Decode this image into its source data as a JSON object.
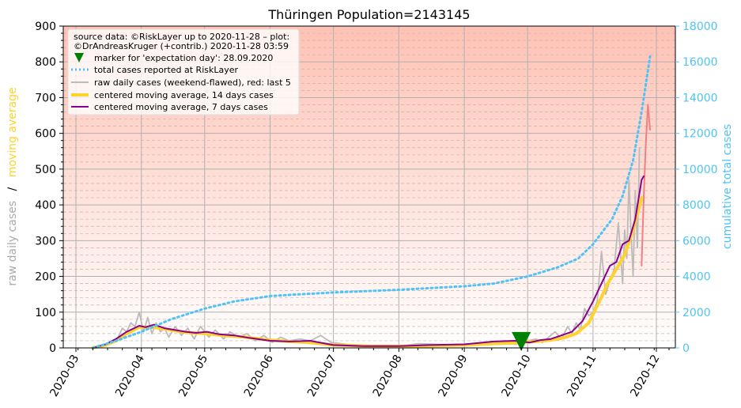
{
  "chart_data": {
    "type": "line",
    "title": "Thüringen Population=2143145",
    "ylabel_left": {
      "part1": "raw daily cases",
      "sep": "/",
      "part2": "moving average"
    },
    "ylabel_right": "cumulative total cases",
    "ylim_left": [
      0,
      900
    ],
    "ylim_right": [
      0,
      18000
    ],
    "yticks_left": [
      "0",
      "100",
      "200",
      "300",
      "400",
      "500",
      "600",
      "700",
      "800",
      "900"
    ],
    "yticks_right": [
      "0",
      "2000",
      "4000",
      "6000",
      "8000",
      "10000",
      "12000",
      "14000",
      "16000",
      "18000"
    ],
    "xticks": [
      "2020-03",
      "2020-04",
      "2020-05",
      "2020-06",
      "2020-07",
      "2020-08",
      "2020-09",
      "2020-10",
      "2020-11",
      "2020-12"
    ],
    "xlim": [
      "2020-02-24",
      "2020-12-10"
    ],
    "grid": true,
    "background": "vertical gradient, white at 0 to salmon at 900 (left axis)",
    "legend": {
      "placement": "top-left",
      "source_line1": "source data: ©RiskLayer up to 2020-11-28 – plot:",
      "source_line2": "©DrAndreasKruger (+contrib.) 2020-11-28 03:59",
      "entries": [
        {
          "label": "marker for 'expectation day': 28.09.2020",
          "style": "marker",
          "color": "#008000"
        },
        {
          "label": "total cases reported at RiskLayer",
          "style": "dotted",
          "color": "#4fc3f7"
        },
        {
          "label": "raw daily cases (weekend-flawed), red: last 5",
          "style": "solid-thin",
          "color": "#bbbbbb"
        },
        {
          "label": "centered moving average, 14 days cases",
          "style": "solid-thick",
          "color": "#ffd22e"
        },
        {
          "label": "centered moving average, 7 days cases",
          "style": "solid",
          "color": "#8b008b"
        }
      ]
    },
    "marker": {
      "date": "2020-09-28",
      "y": 18,
      "color": "#008000"
    },
    "colors": {
      "raw": "#bbbbbb",
      "raw_last5": "#f08080",
      "ma14": "#ffd22e",
      "ma7": "#8b008b",
      "total": "#4fc3f7",
      "right_axis": "#4fc3f7",
      "ylabel_part1": "#aaaaaa",
      "ylabel_part2": "#ffd22e"
    },
    "series": {
      "total_cases": {
        "dates": [
          "2020-03-09",
          "2020-03-20",
          "2020-04-01",
          "2020-04-15",
          "2020-05-01",
          "2020-05-15",
          "2020-06-01",
          "2020-06-15",
          "2020-07-01",
          "2020-08-01",
          "2020-09-01",
          "2020-09-15",
          "2020-10-01",
          "2020-10-15",
          "2020-10-25",
          "2020-11-01",
          "2020-11-10",
          "2020-11-15",
          "2020-11-20",
          "2020-11-24",
          "2020-11-28"
        ],
        "values": [
          0,
          400,
          900,
          1600,
          2200,
          2600,
          2900,
          3000,
          3100,
          3250,
          3450,
          3600,
          4000,
          4500,
          5000,
          5800,
          7200,
          8500,
          10500,
          13200,
          16300
        ]
      },
      "raw_daily": {
        "dates": [
          "2020-03-09",
          "2020-03-13",
          "2020-03-16",
          "2020-03-19",
          "2020-03-21",
          "2020-03-23",
          "2020-03-25",
          "2020-03-27",
          "2020-03-29",
          "2020-03-31",
          "2020-04-02",
          "2020-04-04",
          "2020-04-06",
          "2020-04-08",
          "2020-04-10",
          "2020-04-12",
          "2020-04-14",
          "2020-04-17",
          "2020-04-20",
          "2020-04-23",
          "2020-04-26",
          "2020-04-29",
          "2020-05-03",
          "2020-05-06",
          "2020-05-10",
          "2020-05-13",
          "2020-05-17",
          "2020-05-21",
          "2020-05-25",
          "2020-05-29",
          "2020-06-02",
          "2020-06-06",
          "2020-06-10",
          "2020-06-15",
          "2020-06-20",
          "2020-06-25",
          "2020-06-30",
          "2020-07-10",
          "2020-07-20",
          "2020-08-01",
          "2020-08-10",
          "2020-08-20",
          "2020-09-01",
          "2020-09-10",
          "2020-09-20",
          "2020-09-25",
          "2020-10-01",
          "2020-10-05",
          "2020-10-08",
          "2020-10-11",
          "2020-10-14",
          "2020-10-17",
          "2020-10-20",
          "2020-10-22",
          "2020-10-24",
          "2020-10-26",
          "2020-10-28",
          "2020-10-30",
          "2020-11-01",
          "2020-11-03",
          "2020-11-05",
          "2020-11-07",
          "2020-11-09",
          "2020-11-11",
          "2020-11-13",
          "2020-11-15",
          "2020-11-16",
          "2020-11-17",
          "2020-11-18",
          "2020-11-19",
          "2020-11-20",
          "2020-11-21",
          "2020-11-22",
          "2020-11-23"
        ],
        "values": [
          0,
          5,
          10,
          20,
          30,
          55,
          45,
          70,
          60,
          100,
          45,
          85,
          40,
          70,
          45,
          55,
          30,
          60,
          35,
          55,
          25,
          60,
          30,
          50,
          25,
          45,
          30,
          40,
          20,
          35,
          15,
          30,
          20,
          25,
          20,
          35,
          15,
          8,
          5,
          5,
          12,
          10,
          8,
          10,
          20,
          10,
          20,
          25,
          15,
          30,
          45,
          25,
          60,
          40,
          70,
          50,
          110,
          90,
          100,
          130,
          270,
          150,
          190,
          220,
          350,
          180,
          330,
          250,
          470,
          320,
          200,
          440,
          280,
          560
        ]
      },
      "raw_last5": {
        "dates": [
          "2020-11-24",
          "2020-11-25",
          "2020-11-26",
          "2020-11-27",
          "2020-11-28"
        ],
        "values": [
          230,
          420,
          570,
          680,
          610
        ]
      },
      "ma14": {
        "dates": [
          "2020-03-09",
          "2020-03-15",
          "2020-03-20",
          "2020-03-25",
          "2020-03-31",
          "2020-04-05",
          "2020-04-10",
          "2020-04-15",
          "2020-04-20",
          "2020-04-25",
          "2020-05-01",
          "2020-05-10",
          "2020-05-20",
          "2020-06-01",
          "2020-06-10",
          "2020-06-20",
          "2020-07-01",
          "2020-07-20",
          "2020-08-10",
          "2020-09-01",
          "2020-09-15",
          "2020-09-25",
          "2020-10-05",
          "2020-10-12",
          "2020-10-18",
          "2020-10-24",
          "2020-10-30",
          "2020-11-04",
          "2020-11-08",
          "2020-11-12",
          "2020-11-16",
          "2020-11-20",
          "2020-11-24"
        ],
        "values": [
          0,
          8,
          20,
          40,
          58,
          58,
          55,
          50,
          45,
          42,
          40,
          35,
          30,
          22,
          18,
          15,
          8,
          5,
          5,
          8,
          12,
          14,
          18,
          22,
          28,
          40,
          70,
          130,
          180,
          220,
          260,
          330,
          420
        ]
      },
      "ma7": {
        "dates": [
          "2020-03-09",
          "2020-03-15",
          "2020-03-20",
          "2020-03-25",
          "2020-03-31",
          "2020-04-03",
          "2020-04-07",
          "2020-04-12",
          "2020-04-17",
          "2020-04-22",
          "2020-04-27",
          "2020-05-02",
          "2020-05-08",
          "2020-05-15",
          "2020-05-22",
          "2020-06-01",
          "2020-06-10",
          "2020-06-20",
          "2020-07-01",
          "2020-07-15",
          "2020-08-01",
          "2020-08-15",
          "2020-09-01",
          "2020-09-15",
          "2020-09-25",
          "2020-10-02",
          "2020-10-07",
          "2020-10-12",
          "2020-10-17",
          "2020-10-22",
          "2020-10-27",
          "2020-11-01",
          "2020-11-05",
          "2020-11-09",
          "2020-11-12",
          "2020-11-15",
          "2020-11-18",
          "2020-11-21",
          "2020-11-24",
          "2020-11-25"
        ],
        "values": [
          0,
          10,
          25,
          45,
          62,
          58,
          65,
          55,
          50,
          45,
          42,
          45,
          38,
          35,
          28,
          20,
          18,
          20,
          8,
          5,
          5,
          8,
          10,
          18,
          20,
          15,
          22,
          25,
          35,
          45,
          75,
          130,
          180,
          230,
          240,
          290,
          300,
          360,
          470,
          480
        ]
      }
    }
  }
}
